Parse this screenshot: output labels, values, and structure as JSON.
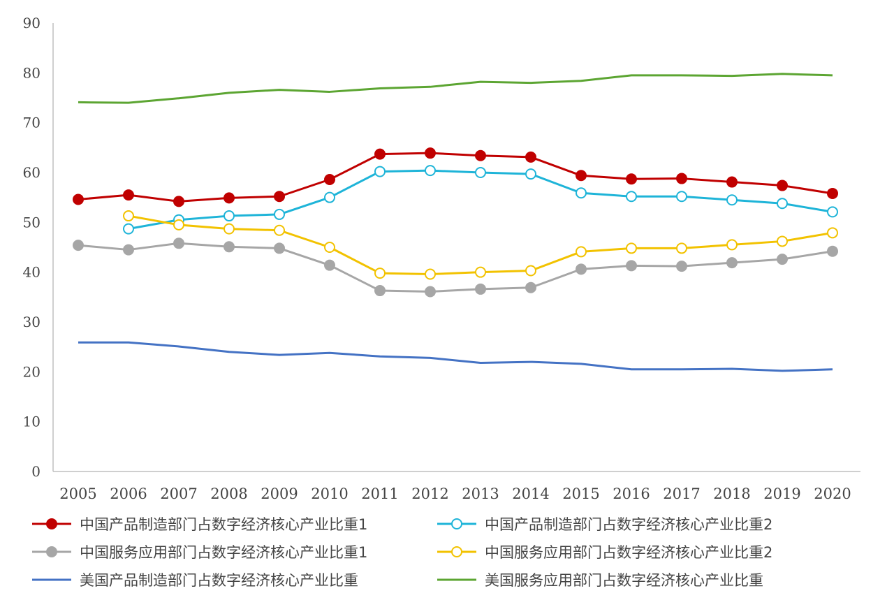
{
  "chart_data": {
    "type": "line",
    "x": [
      "2005",
      "2006",
      "2007",
      "2008",
      "2009",
      "2010",
      "2011",
      "2012",
      "2013",
      "2014",
      "2015",
      "2016",
      "2017",
      "2018",
      "2019",
      "2020"
    ],
    "ylim": [
      0,
      90
    ],
    "yticks": [
      0,
      10,
      20,
      30,
      40,
      50,
      60,
      70,
      80,
      90
    ],
    "grid": false,
    "legend_position": "bottom",
    "series": [
      {
        "name": "中国产品制造部门占数字经济核心产业比重1",
        "color": "#c00000",
        "marker": "filled",
        "values": [
          54.6,
          55.5,
          54.2,
          54.9,
          55.2,
          58.6,
          63.7,
          63.9,
          63.4,
          63.1,
          59.4,
          58.7,
          58.8,
          58.1,
          57.4,
          55.8
        ]
      },
      {
        "name": "中国产品制造部门占数字经济核心产业比重2",
        "color": "#1eb4d8",
        "marker": "hollow",
        "values": [
          null,
          48.7,
          50.5,
          51.3,
          51.6,
          55.0,
          60.2,
          60.4,
          60.0,
          59.7,
          55.9,
          55.2,
          55.2,
          54.5,
          53.8,
          52.1
        ]
      },
      {
        "name": "中国服务应用部门占数字经济核心产业比重1",
        "color": "#a6a6a6",
        "marker": "filled",
        "values": [
          45.4,
          44.5,
          45.8,
          45.1,
          44.8,
          41.4,
          36.3,
          36.1,
          36.6,
          36.9,
          40.6,
          41.3,
          41.2,
          41.9,
          42.6,
          44.2
        ]
      },
      {
        "name": "中国服务应用部门占数字经济核心产业比重2",
        "color": "#f2c200",
        "marker": "hollow",
        "values": [
          null,
          51.3,
          49.5,
          48.7,
          48.4,
          45.0,
          39.8,
          39.6,
          40.0,
          40.3,
          44.1,
          44.8,
          44.8,
          45.5,
          46.2,
          47.9
        ]
      },
      {
        "name": "美国产品制造部门占数字经济核心产业比重",
        "color": "#4472c4",
        "marker": "none",
        "values": [
          25.9,
          25.9,
          25.1,
          24.0,
          23.4,
          23.8,
          23.1,
          22.8,
          21.8,
          22.0,
          21.6,
          20.5,
          20.5,
          20.6,
          20.2,
          20.5
        ]
      },
      {
        "name": "美国服务应用部门占数字经济核心产业比重",
        "color": "#5ca532",
        "marker": "none",
        "values": [
          74.1,
          74.0,
          74.9,
          76.0,
          76.6,
          76.2,
          76.9,
          77.2,
          78.2,
          78.0,
          78.4,
          79.5,
          79.5,
          79.4,
          79.8,
          79.5
        ]
      }
    ]
  }
}
